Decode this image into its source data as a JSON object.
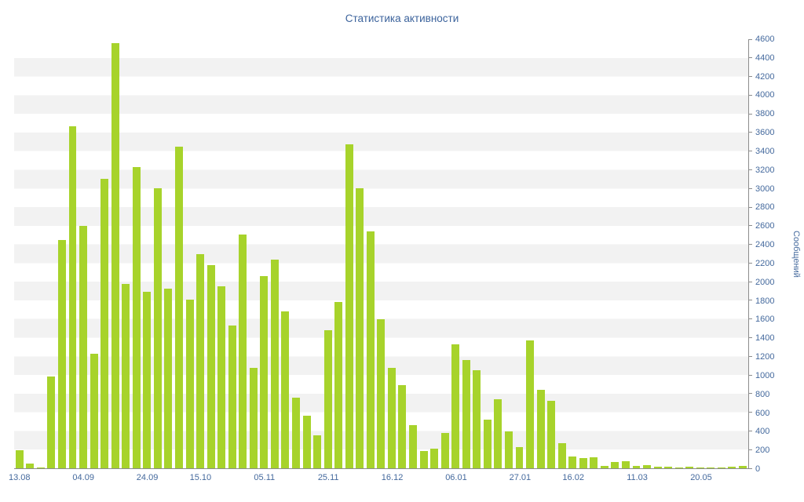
{
  "title": "Статистика активности",
  "chart_data": {
    "type": "bar",
    "title": "Статистика активности",
    "xlabel": "",
    "ylabel": "Сообщений",
    "ylim": [
      0,
      4600
    ],
    "y_step": 200,
    "y_ticks": [
      0,
      200,
      400,
      600,
      800,
      1000,
      1200,
      1400,
      1600,
      1800,
      2000,
      2200,
      2400,
      2600,
      2800,
      3000,
      3200,
      3400,
      3600,
      3800,
      4000,
      4200,
      4400,
      4600
    ],
    "x_tick_labels": [
      "13.08",
      "04.09",
      "24.09",
      "15.10",
      "05.11",
      "25.11",
      "16.12",
      "06.01",
      "27.01",
      "16.02",
      "11.03",
      "20.05"
    ],
    "x_tick_indices": [
      0,
      6,
      12,
      17,
      23,
      29,
      35,
      41,
      47,
      52,
      58,
      64
    ],
    "values": [
      190,
      50,
      10,
      980,
      2450,
      3670,
      2600,
      1230,
      3100,
      4560,
      1980,
      3230,
      1890,
      3000,
      1930,
      3450,
      1810,
      2300,
      2180,
      1950,
      1530,
      2510,
      1080,
      2060,
      2240,
      1680,
      760,
      560,
      350,
      1480,
      1780,
      3470,
      3000,
      2540,
      1600,
      1080,
      890,
      460,
      185,
      210,
      380,
      1330,
      1160,
      1050,
      520,
      740,
      395,
      225,
      1375,
      840,
      720,
      270,
      125,
      110,
      120,
      25,
      65,
      75,
      25,
      35,
      15,
      15,
      10,
      20,
      10,
      10,
      10,
      15,
      25
    ],
    "grid": "alternating-horizontal-stripes",
    "legend": "none"
  },
  "colors": {
    "bar": "#a7d32b",
    "axis": "#8c8c8c",
    "labels": "#44699d",
    "title": "#3c639c",
    "stripe": "#f2f2f2",
    "background": "#ffffff"
  }
}
